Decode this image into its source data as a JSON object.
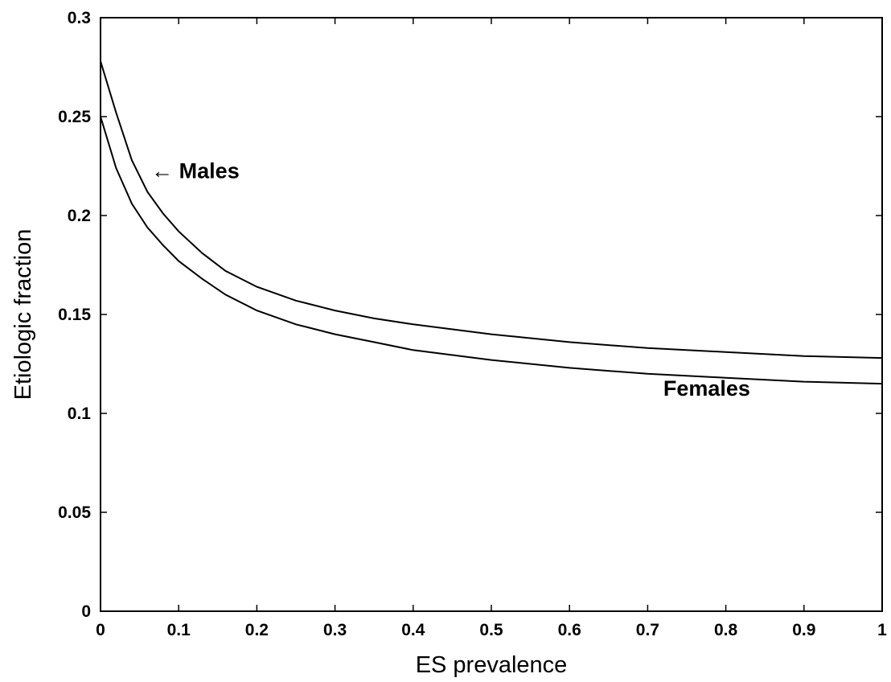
{
  "chart_data": {
    "type": "line",
    "xlabel": "ES prevalence",
    "ylabel": "Etiologic fraction",
    "xlim": [
      0,
      1
    ],
    "ylim": [
      0,
      0.3
    ],
    "x_ticks": [
      0,
      0.1,
      0.2,
      0.3,
      0.4,
      0.5,
      0.6,
      0.7,
      0.8,
      0.9,
      1
    ],
    "x_tick_labels": [
      "0",
      "0.1",
      "0.2",
      "0.3",
      "0.4",
      "0.5",
      "0.6",
      "0.7",
      "0.8",
      "0.9",
      "1"
    ],
    "y_ticks": [
      0,
      0.05,
      0.1,
      0.15,
      0.2,
      0.25,
      0.3
    ],
    "y_tick_labels": [
      "0",
      "0.05",
      "0.1",
      "0.15",
      "0.2",
      "0.25",
      "0.3"
    ],
    "grid": false,
    "series": [
      {
        "x": [
          0,
          0.02,
          0.04,
          0.06,
          0.08,
          0.1,
          0.13,
          0.16,
          0.2,
          0.25,
          0.3,
          0.35,
          0.4,
          0.5,
          0.6,
          0.7,
          0.8,
          0.9,
          1.0
        ],
        "y": [
          0.278,
          0.252,
          0.228,
          0.212,
          0.201,
          0.192,
          0.181,
          0.172,
          0.164,
          0.157,
          0.152,
          0.148,
          0.145,
          0.14,
          0.136,
          0.133,
          0.131,
          0.129,
          0.128
        ]
      },
      {
        "x": [
          0,
          0.02,
          0.04,
          0.06,
          0.08,
          0.1,
          0.13,
          0.16,
          0.2,
          0.25,
          0.3,
          0.35,
          0.4,
          0.5,
          0.6,
          0.7,
          0.8,
          0.9,
          1.0
        ],
        "y": [
          0.25,
          0.224,
          0.206,
          0.194,
          0.185,
          0.177,
          0.168,
          0.16,
          0.152,
          0.145,
          0.14,
          0.136,
          0.132,
          0.127,
          0.123,
          0.12,
          0.118,
          0.116,
          0.115
        ]
      }
    ],
    "annotations": [
      {
        "text": "← Males",
        "x": 0.065,
        "y": 0.219
      },
      {
        "text": "Females",
        "x": 0.72,
        "y": 0.109
      }
    ]
  }
}
